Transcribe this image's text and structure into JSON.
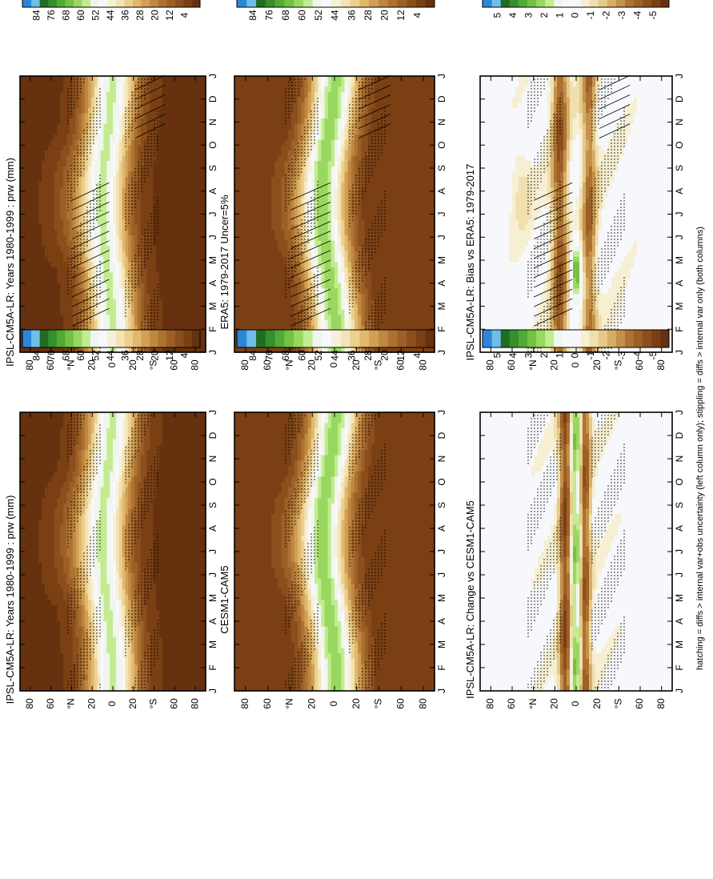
{
  "footnote": "hatching = diffs > internal var+obs uncertainty (left column only); stippling = diffs > internal var only (both columns)",
  "palettes": {
    "abs": [
      "#66310f",
      "#7a4014",
      "#8b4f1d",
      "#9c6027",
      "#ad7231",
      "#bf8740",
      "#d19f55",
      "#e1b96d",
      "#edcf8e",
      "#f4e3b4",
      "#f7f0d9",
      "#f7f8fb",
      "#f0f6ee",
      "#c2ec8f",
      "#99d860",
      "#74c143",
      "#52a936",
      "#348f2c",
      "#226c22",
      "#6fbde8",
      "#2c86d8"
    ],
    "diff": [
      "#66310f",
      "#7a4014",
      "#8b4f1d",
      "#9c6027",
      "#ad7231",
      "#c4914a",
      "#d6ad66",
      "#e6c888",
      "#f1dfae",
      "#f6efd3",
      "#f7f8fb",
      "#f7f8fb",
      "#f0f6ee",
      "#c2ec8f",
      "#99d860",
      "#74c143",
      "#52a936",
      "#348f2c",
      "#226c22",
      "#6fbde8",
      "#2c86d8"
    ]
  },
  "chart_data": [
    {
      "panel": "a",
      "type": "heatmap",
      "title": "IPSL-CM5A-LR: Years 1980-1999 : prw (mm)",
      "x": [
        "J",
        "F",
        "M",
        "A",
        "M",
        "J",
        "J",
        "A",
        "S",
        "O",
        "N",
        "D",
        "J"
      ],
      "y": [
        "80°N",
        "60°N",
        "40°N",
        "20°N",
        "0",
        "20°S",
        "40°S",
        "60°S",
        "80°S"
      ],
      "y_ticks": [
        "80",
        "60",
        "°N",
        "20",
        "0",
        "20",
        "°S",
        "60",
        "80"
      ],
      "colorbar_labels": [
        "84",
        "76",
        "68",
        "60",
        "52",
        "44",
        "36",
        "28",
        "20",
        "12",
        "4"
      ],
      "palette": "abs",
      "field": "abs",
      "hatching": true,
      "stippling": true
    },
    {
      "panel": "b",
      "type": "heatmap",
      "title": "IPSL-CM5A-LR: Years 1980-1999 : prw (mm)",
      "x": [
        "J",
        "F",
        "M",
        "A",
        "M",
        "J",
        "J",
        "A",
        "S",
        "O",
        "N",
        "D",
        "J"
      ],
      "y": [
        "80°N",
        "60°N",
        "40°N",
        "20°N",
        "0",
        "20°S",
        "40°S",
        "60°S",
        "80°S"
      ],
      "y_ticks": [
        "80",
        "60",
        "°N",
        "20",
        "0",
        "20",
        "°S",
        "60",
        "80"
      ],
      "colorbar_labels": [
        "84",
        "76",
        "68",
        "60",
        "52",
        "44",
        "36",
        "28",
        "20",
        "12",
        "4"
      ],
      "palette": "abs",
      "field": "abs",
      "hatching": false,
      "stippling": true
    },
    {
      "panel": "c",
      "type": "heatmap",
      "title": "ERA5: 1979-2017 Uncer=5%",
      "x": [
        "J",
        "F",
        "M",
        "A",
        "M",
        "J",
        "J",
        "A",
        "S",
        "O",
        "N",
        "D",
        "J"
      ],
      "y": [
        "80°N",
        "60°N",
        "40°N",
        "20°N",
        "0",
        "20°S",
        "40°S",
        "60°S",
        "80°S"
      ],
      "y_ticks": [
        "80",
        "60",
        "°N",
        "20",
        "0",
        "20",
        "°S",
        "60",
        "80"
      ],
      "colorbar_labels": [
        "84",
        "76",
        "68",
        "60",
        "52",
        "44",
        "36",
        "28",
        "20",
        "12",
        "4"
      ],
      "palette": "abs",
      "field": "obs",
      "hatching": true,
      "stippling": true
    },
    {
      "panel": "d",
      "type": "heatmap",
      "title": "CESM1-CAM5",
      "x": [
        "J",
        "F",
        "M",
        "A",
        "M",
        "J",
        "J",
        "A",
        "S",
        "O",
        "N",
        "D",
        "J"
      ],
      "y": [
        "80°N",
        "60°N",
        "40°N",
        "20°N",
        "0",
        "20°S",
        "40°S",
        "60°S",
        "80°S"
      ],
      "y_ticks": [
        "80",
        "60",
        "°N",
        "20",
        "0",
        "20",
        "°S",
        "60",
        "80"
      ],
      "colorbar_labels": [
        "84",
        "76",
        "68",
        "60",
        "52",
        "44",
        "36",
        "28",
        "20",
        "12",
        "4"
      ],
      "palette": "abs",
      "field": "obs",
      "hatching": false,
      "stippling": true
    },
    {
      "panel": "e",
      "type": "heatmap",
      "title": "IPSL-CM5A-LR: Bias vs ERA5: 1979-2017",
      "x": [
        "J",
        "F",
        "M",
        "A",
        "M",
        "J",
        "J",
        "A",
        "S",
        "O",
        "N",
        "D",
        "J"
      ],
      "y": [
        "80°N",
        "60°N",
        "40°N",
        "20°N",
        "0",
        "20°S",
        "40°S",
        "60°S",
        "80°S"
      ],
      "y_ticks": [
        "80",
        "60",
        "°N",
        "20",
        "0",
        "20",
        "°S",
        "60",
        "80"
      ],
      "colorbar_labels": [
        "5",
        "4",
        "3",
        "2",
        "1",
        "0",
        "-1",
        "-2",
        "-3",
        "-4",
        "-5"
      ],
      "palette": "diff",
      "field": "diff",
      "hatching": true,
      "stippling": true
    },
    {
      "panel": "f",
      "type": "heatmap",
      "title": "IPSL-CM5A-LR: Change vs CESM1-CAM5",
      "x": [
        "J",
        "F",
        "M",
        "A",
        "M",
        "J",
        "J",
        "A",
        "S",
        "O",
        "N",
        "D",
        "J"
      ],
      "y": [
        "80°N",
        "60°N",
        "40°N",
        "20°N",
        "0",
        "20°S",
        "40°S",
        "60°S",
        "80°S"
      ],
      "y_ticks": [
        "80",
        "60",
        "°N",
        "20",
        "0",
        "20",
        "°S",
        "60",
        "80"
      ],
      "colorbar_labels": [
        "5",
        "4",
        "3",
        "2",
        "1",
        "0",
        "-1",
        "-2",
        "-3",
        "-4",
        "-5"
      ],
      "palette": "diff",
      "field": "diff2",
      "hatching": false,
      "stippling": true
    }
  ]
}
